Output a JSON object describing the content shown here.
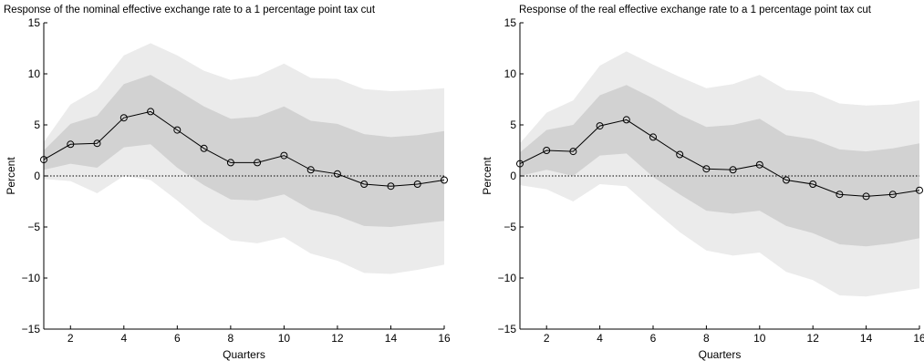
{
  "colors": {
    "outer_band": "#ebebeb",
    "inner_band": "#d2d2d2",
    "line": "#000000",
    "zero_line": "#000000"
  },
  "chart_data": [
    {
      "type": "line",
      "title": "Response of the nominal effective exchange rate to a 1 percentage point tax cut",
      "xlabel": "Quarters",
      "ylabel": "Percent",
      "xlim": [
        1,
        16
      ],
      "ylim": [
        -15,
        15
      ],
      "x_ticks": [
        2,
        4,
        6,
        8,
        10,
        12,
        14,
        16
      ],
      "y_ticks": [
        -15,
        -10,
        -5,
        0,
        5,
        10,
        15
      ],
      "x": [
        1,
        2,
        3,
        4,
        5,
        6,
        7,
        8,
        9,
        10,
        11,
        12,
        13,
        14,
        15,
        16
      ],
      "series": [
        {
          "values": [
            1.6,
            3.1,
            3.2,
            5.7,
            6.3,
            4.5,
            2.7,
            1.3,
            1.3,
            2.0,
            0.6,
            0.2,
            -0.8,
            -1.0,
            -0.8,
            -0.4
          ]
        }
      ],
      "bands": [
        {
          "level": "outer",
          "upper": [
            3.3,
            7.0,
            8.5,
            11.8,
            13.0,
            11.8,
            10.3,
            9.4,
            9.8,
            11.0,
            9.6,
            9.5,
            8.5,
            8.3,
            8.4,
            8.6
          ],
          "lower": [
            -0.3,
            -0.5,
            -1.7,
            0.0,
            -0.4,
            -2.4,
            -4.6,
            -6.3,
            -6.6,
            -6.0,
            -7.6,
            -8.3,
            -9.5,
            -9.6,
            -9.2,
            -8.7
          ]
        },
        {
          "level": "inner",
          "upper": [
            2.5,
            5.1,
            5.9,
            9.0,
            9.9,
            8.4,
            6.8,
            5.6,
            5.8,
            6.8,
            5.4,
            5.1,
            4.1,
            3.8,
            4.0,
            4.4
          ],
          "lower": [
            0.6,
            1.2,
            0.8,
            2.8,
            3.1,
            0.8,
            -0.9,
            -2.3,
            -2.4,
            -1.8,
            -3.3,
            -3.9,
            -4.9,
            -5.0,
            -4.7,
            -4.4
          ]
        }
      ],
      "zero_line": "dotted"
    },
    {
      "type": "line",
      "title": "Response of the real effective exchange rate to a 1 percentage point tax cut",
      "xlabel": "Quarters",
      "ylabel": "Percent",
      "xlim": [
        1,
        16
      ],
      "ylim": [
        -15,
        15
      ],
      "x_ticks": [
        2,
        4,
        6,
        8,
        10,
        12,
        14,
        16
      ],
      "y_ticks": [
        -15,
        -10,
        -5,
        0,
        5,
        10,
        15
      ],
      "x": [
        1,
        2,
        3,
        4,
        5,
        6,
        7,
        8,
        9,
        10,
        11,
        12,
        13,
        14,
        15,
        16
      ],
      "series": [
        {
          "values": [
            1.2,
            2.5,
            2.4,
            4.9,
            5.5,
            3.8,
            2.1,
            0.7,
            0.6,
            1.1,
            -0.4,
            -0.8,
            -1.8,
            -2.0,
            -1.8,
            -1.4
          ]
        }
      ],
      "bands": [
        {
          "level": "outer",
          "upper": [
            3.2,
            6.2,
            7.4,
            10.8,
            12.2,
            10.9,
            9.7,
            8.6,
            9.0,
            9.9,
            8.4,
            8.2,
            7.1,
            6.9,
            7.0,
            7.4
          ],
          "lower": [
            -0.9,
            -1.3,
            -2.5,
            -0.8,
            -1.0,
            -3.3,
            -5.5,
            -7.3,
            -7.8,
            -7.5,
            -9.4,
            -10.2,
            -11.7,
            -11.8,
            -11.4,
            -11.0
          ]
        },
        {
          "level": "inner",
          "upper": [
            2.3,
            4.5,
            5.0,
            7.9,
            8.9,
            7.6,
            6.0,
            4.8,
            5.0,
            5.6,
            4.0,
            3.6,
            2.6,
            2.4,
            2.7,
            3.2
          ],
          "lower": [
            0.0,
            0.6,
            0.0,
            2.0,
            2.2,
            -0.1,
            -1.8,
            -3.4,
            -3.7,
            -3.4,
            -4.9,
            -5.6,
            -6.7,
            -6.9,
            -6.6,
            -6.1
          ]
        }
      ],
      "zero_line": "dotted"
    }
  ]
}
